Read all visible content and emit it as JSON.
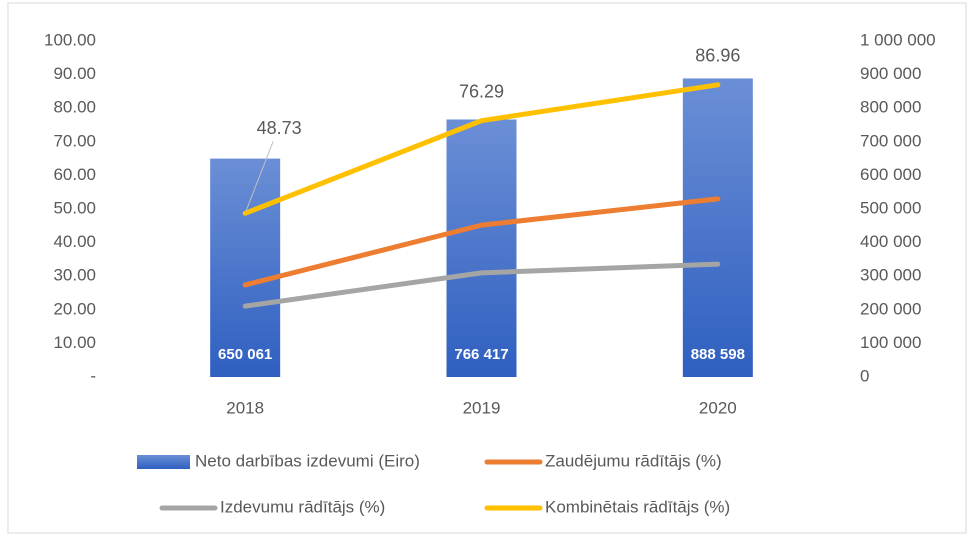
{
  "chart_data": {
    "type": "bar-line",
    "categories": [
      "2018",
      "2019",
      "2020"
    ],
    "ylim": [
      0,
      100
    ],
    "yticks": [
      {
        "value": 0,
        "label": "-"
      },
      {
        "value": 10,
        "label": "10.00"
      },
      {
        "value": 20,
        "label": "20.00"
      },
      {
        "value": 30,
        "label": "30.00"
      },
      {
        "value": 40,
        "label": "40.00"
      },
      {
        "value": 50,
        "label": "50.00"
      },
      {
        "value": 60,
        "label": "60.00"
      },
      {
        "value": 70,
        "label": "70.00"
      },
      {
        "value": 80,
        "label": "80.00"
      },
      {
        "value": 90,
        "label": "90.00"
      },
      {
        "value": 100,
        "label": "100.00"
      }
    ],
    "y2lim": [
      0,
      1000000
    ],
    "y2ticks": [
      0,
      {
        "value": 100000,
        "label": "100 000"
      },
      {
        "value": 200000,
        "label": "200 000"
      },
      {
        "value": 300000,
        "label": "300 000"
      },
      {
        "value": 400000,
        "label": "400 000"
      },
      {
        "value": 500000,
        "label": "500 000"
      },
      {
        "value": 600000,
        "label": "600 000"
      },
      {
        "value": 700000,
        "label": "700 000"
      },
      {
        "value": 800000,
        "label": "800 000"
      },
      {
        "value": 900000,
        "label": "900 000"
      },
      {
        "value": 1000000,
        "label": "1 000 000"
      }
    ],
    "series": [
      {
        "name": "Neto darbības izdevumi (Eiro)",
        "type": "bar",
        "axis": "y2",
        "color": "#4472c4",
        "values": [
          650061,
          766417,
          888598
        ],
        "value_labels": [
          "650 061",
          "766 417",
          "888 598"
        ]
      },
      {
        "name": "Zaudējumu rādītājs (%)",
        "type": "line",
        "color": "#ed7d31",
        "values": [
          27.4,
          45.2,
          53.0
        ]
      },
      {
        "name": "Izdevumu rādītājs (%)",
        "type": "line",
        "color": "#a5a5a5",
        "values": [
          21.1,
          31.0,
          33.6
        ]
      },
      {
        "name": "Kombinētais rādītājs (%)",
        "type": "line",
        "color": "#ffc000",
        "values": [
          48.73,
          76.29,
          86.96
        ],
        "data_labels": true
      }
    ],
    "legend": "bottom"
  }
}
